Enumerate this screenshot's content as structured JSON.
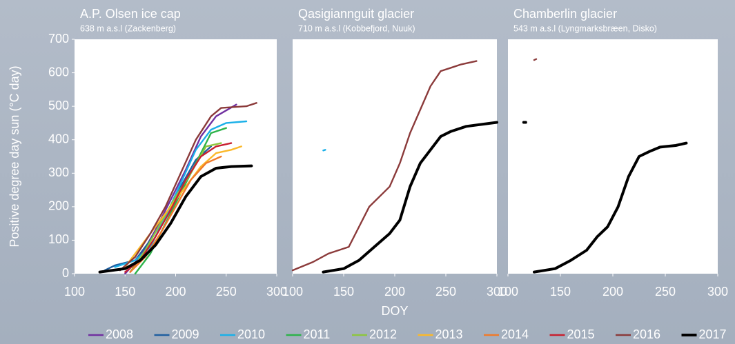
{
  "chart_data": [
    {
      "type": "line",
      "title": "A.P. Olsen ice cap",
      "subtitle": "638 m a.s.l (Zackenberg)",
      "y_label": "Positive degree day sun (°C day)",
      "xlim": [
        100,
        300
      ],
      "xticks": [
        100,
        150,
        200,
        250,
        300
      ],
      "ylim": [
        0,
        700
      ],
      "yticks": [
        0,
        100,
        200,
        300,
        400,
        500,
        600,
        700
      ],
      "series": [
        {
          "name": "2008",
          "color": "#7030a0",
          "x": [
            150,
            165,
            180,
            195,
            210,
            225,
            240,
            260
          ],
          "values": [
            0,
            50,
            130,
            220,
            310,
            410,
            470,
            505
          ]
        },
        {
          "name": "2009",
          "color": "#1f5fa0",
          "x": [
            130,
            140,
            160,
            175,
            190,
            205,
            220,
            235
          ],
          "values": [
            10,
            25,
            40,
            100,
            170,
            260,
            340,
            380
          ]
        },
        {
          "name": "2010",
          "color": "#1ab0e8",
          "x": [
            140,
            160,
            175,
            190,
            205,
            220,
            235,
            250,
            270
          ],
          "values": [
            20,
            40,
            80,
            170,
            270,
            370,
            430,
            450,
            455
          ]
        },
        {
          "name": "2011",
          "color": "#2db34a",
          "x": [
            160,
            175,
            190,
            205,
            220,
            235,
            250
          ],
          "values": [
            0,
            60,
            150,
            240,
            330,
            420,
            435
          ]
        },
        {
          "name": "2012",
          "color": "#8dc63f",
          "x": [
            155,
            170,
            185,
            200,
            215,
            230,
            245
          ],
          "values": [
            5,
            70,
            150,
            230,
            300,
            380,
            390
          ]
        },
        {
          "name": "2013",
          "color": "#fbb829",
          "x": [
            150,
            165,
            180,
            195,
            210,
            225,
            240,
            255,
            265
          ],
          "values": [
            20,
            80,
            140,
            200,
            260,
            320,
            360,
            370,
            380
          ]
        },
        {
          "name": "2014",
          "color": "#f07a2a",
          "x": [
            155,
            170,
            185,
            200,
            215,
            230,
            245
          ],
          "values": [
            5,
            50,
            120,
            200,
            280,
            330,
            350
          ]
        },
        {
          "name": "2015",
          "color": "#c8202f",
          "x": [
            150,
            165,
            180,
            195,
            210,
            225,
            240,
            255
          ],
          "values": [
            5,
            40,
            110,
            190,
            280,
            350,
            380,
            390
          ]
        },
        {
          "name": "2016",
          "color": "#8b3a3a",
          "x": [
            145,
            160,
            175,
            190,
            205,
            220,
            235,
            245,
            270,
            280
          ],
          "values": [
            10,
            50,
            120,
            200,
            300,
            400,
            470,
            495,
            500,
            510
          ]
        },
        {
          "name": "2017",
          "color": "#000000",
          "x": [
            125,
            150,
            165,
            180,
            195,
            210,
            225,
            240,
            255,
            275
          ],
          "values": [
            5,
            15,
            40,
            85,
            150,
            230,
            290,
            315,
            320,
            322
          ]
        }
      ]
    },
    {
      "type": "line",
      "title": "Qasigiannguit glacier",
      "subtitle": "710 m a.s.l (Kobbefjord, Nuuk)",
      "x_label": "DOY",
      "xlim": [
        100,
        300
      ],
      "xticks": [
        100,
        150,
        200,
        250,
        300
      ],
      "ylim": [
        0,
        700
      ],
      "series": [
        {
          "name": "2010",
          "color": "#1ab0e8",
          "x": [
            130,
            132
          ],
          "values": [
            368,
            370
          ]
        },
        {
          "name": "2016",
          "color": "#8b3a3a",
          "x": [
            100,
            120,
            135,
            155,
            165,
            175,
            185,
            195,
            205,
            215,
            225,
            235,
            245,
            255,
            265,
            280
          ],
          "values": [
            10,
            35,
            60,
            80,
            140,
            200,
            230,
            260,
            330,
            420,
            490,
            560,
            605,
            615,
            625,
            635
          ]
        },
        {
          "name": "2017",
          "color": "#000000",
          "x": [
            130,
            150,
            165,
            180,
            195,
            205,
            215,
            225,
            235,
            245,
            255,
            270,
            300
          ],
          "values": [
            5,
            15,
            40,
            80,
            120,
            160,
            260,
            330,
            370,
            410,
            425,
            440,
            452
          ]
        }
      ]
    },
    {
      "type": "line",
      "title": "Chamberlin glacier",
      "subtitle": "543 m a.s.l (Lyngmarksbræen, Disko)",
      "xlim": [
        100,
        300
      ],
      "xticks": [
        100,
        150,
        200,
        250,
        300
      ],
      "ylim": [
        0,
        700
      ],
      "series": [
        {
          "name": "2016",
          "color": "#8b3a3a",
          "x": [
            125,
            127
          ],
          "values": [
            638,
            641
          ]
        },
        {
          "name": "2017",
          "color": "#000000",
          "x": [
            115,
            117,
            null,
            125,
            145,
            160,
            175,
            185,
            195,
            205,
            215,
            225,
            235,
            245,
            260,
            270
          ],
          "values": [
            452,
            452,
            null,
            5,
            15,
            40,
            70,
            110,
            140,
            200,
            290,
            350,
            365,
            378,
            383,
            390
          ]
        }
      ]
    }
  ]
}
